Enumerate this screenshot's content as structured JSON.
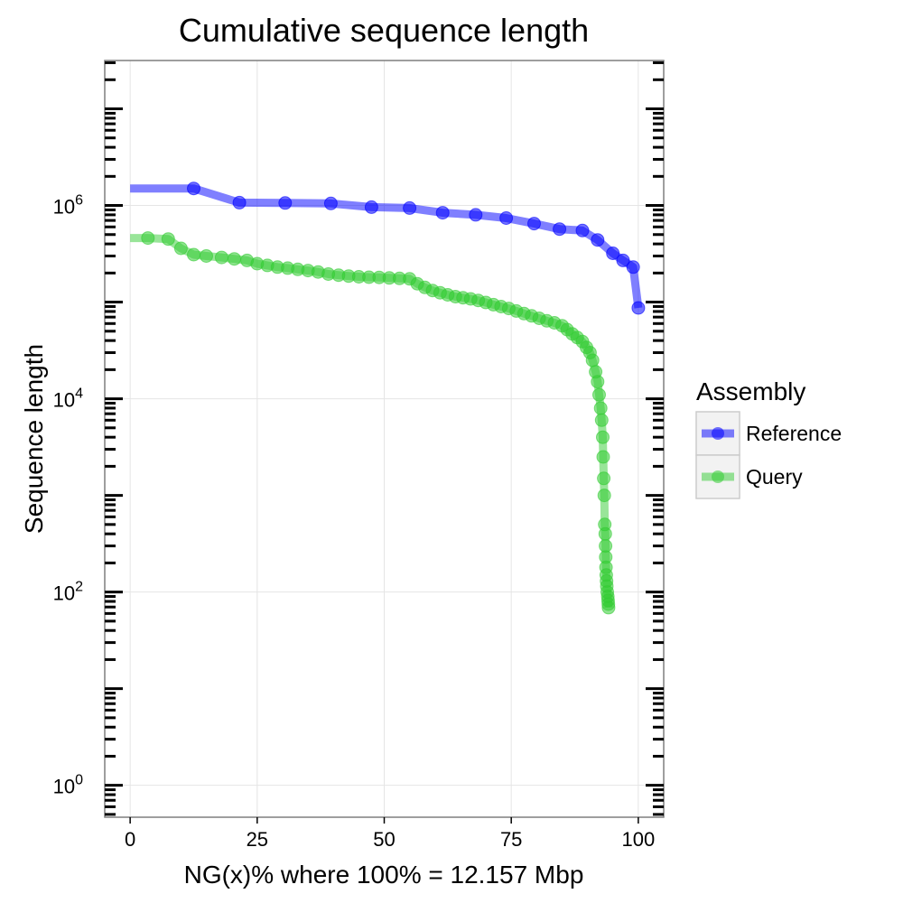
{
  "chart_data": {
    "type": "line",
    "title": "Cumulative sequence length",
    "xlabel": "NG(x)% where 100% = 12.157 Mbp",
    "ylabel": "Sequence length",
    "xlim": [
      -5,
      105
    ],
    "ylim_log10": [
      -0.33,
      7.5
    ],
    "y_scale": "log10",
    "x_ticks": [
      0,
      25,
      50,
      75,
      100
    ],
    "x_tick_labels": [
      "0",
      "25",
      "50",
      "75",
      "100"
    ],
    "y_ticks": [
      {
        "value": 1,
        "base": "10",
        "exp": "0"
      },
      {
        "value": 100,
        "base": "10",
        "exp": "2"
      },
      {
        "value": 10000,
        "base": "10",
        "exp": "4"
      },
      {
        "value": 1000000,
        "base": "10",
        "exp": "6"
      }
    ],
    "grid": true,
    "legend": {
      "title": "Assembly",
      "position": "right"
    },
    "series": [
      {
        "name": "Reference",
        "color": "#0000ff",
        "line_start": [
          0,
          1500000
        ],
        "points": [
          [
            12.5,
            1500000
          ],
          [
            21.5,
            1070000
          ],
          [
            30.5,
            1060000
          ],
          [
            39.5,
            1050000
          ],
          [
            47.5,
            960000
          ],
          [
            55,
            940000
          ],
          [
            61.5,
            840000
          ],
          [
            68,
            800000
          ],
          [
            74,
            740000
          ],
          [
            79.5,
            650000
          ],
          [
            84.5,
            570000
          ],
          [
            89,
            550000
          ],
          [
            92,
            440000
          ],
          [
            95,
            320000
          ],
          [
            97,
            270000
          ],
          [
            99,
            230000
          ],
          [
            100,
            87000
          ]
        ]
      },
      {
        "name": "Query",
        "color": "#33cc33",
        "line_start": [
          0,
          460000
        ],
        "points": [
          [
            3.5,
            460000
          ],
          [
            7.5,
            450000
          ],
          [
            10,
            360000
          ],
          [
            12.5,
            310000
          ],
          [
            15,
            300000
          ],
          [
            18,
            290000
          ],
          [
            20.5,
            280000
          ],
          [
            23,
            270000
          ],
          [
            25,
            250000
          ],
          [
            27,
            240000
          ],
          [
            29,
            230000
          ],
          [
            31,
            225000
          ],
          [
            33,
            218000
          ],
          [
            35,
            212000
          ],
          [
            37,
            205000
          ],
          [
            39,
            195000
          ],
          [
            41,
            190000
          ],
          [
            43,
            186000
          ],
          [
            45,
            183000
          ],
          [
            47,
            181000
          ],
          [
            49,
            180000
          ],
          [
            51,
            178000
          ],
          [
            53,
            176000
          ],
          [
            55,
            174000
          ],
          [
            56.5,
            155000
          ],
          [
            58,
            142000
          ],
          [
            59.5,
            132000
          ],
          [
            61,
            125000
          ],
          [
            62.5,
            119000
          ],
          [
            64,
            114000
          ],
          [
            65.5,
            111000
          ],
          [
            67,
            108000
          ],
          [
            68.5,
            104000
          ],
          [
            70,
            99000
          ],
          [
            71.5,
            94000
          ],
          [
            73,
            90000
          ],
          [
            74.5,
            86000
          ],
          [
            76,
            81000
          ],
          [
            77.5,
            76000
          ],
          [
            79,
            72000
          ],
          [
            80.5,
            68000
          ],
          [
            82,
            64000
          ],
          [
            83.5,
            61000
          ],
          [
            85,
            57000
          ],
          [
            86,
            52000
          ],
          [
            87,
            47000
          ],
          [
            88,
            43000
          ],
          [
            89,
            39000
          ],
          [
            89.8,
            34000
          ],
          [
            90.5,
            30000
          ],
          [
            91,
            25000
          ],
          [
            91.6,
            19000
          ],
          [
            92,
            15000
          ],
          [
            92.3,
            11000
          ],
          [
            92.6,
            8000
          ],
          [
            92.8,
            6000
          ],
          [
            93,
            4000
          ],
          [
            93.1,
            2500
          ],
          [
            93.2,
            1500
          ],
          [
            93.3,
            1000
          ],
          [
            93.4,
            500
          ],
          [
            93.5,
            400
          ],
          [
            93.55,
            300
          ],
          [
            93.6,
            230
          ],
          [
            93.65,
            180
          ],
          [
            93.7,
            150
          ],
          [
            93.75,
            130
          ],
          [
            93.8,
            115
          ],
          [
            93.9,
            100
          ],
          [
            94,
            90
          ],
          [
            94.05,
            82
          ],
          [
            94.1,
            75
          ],
          [
            94.15,
            69
          ]
        ]
      }
    ]
  }
}
